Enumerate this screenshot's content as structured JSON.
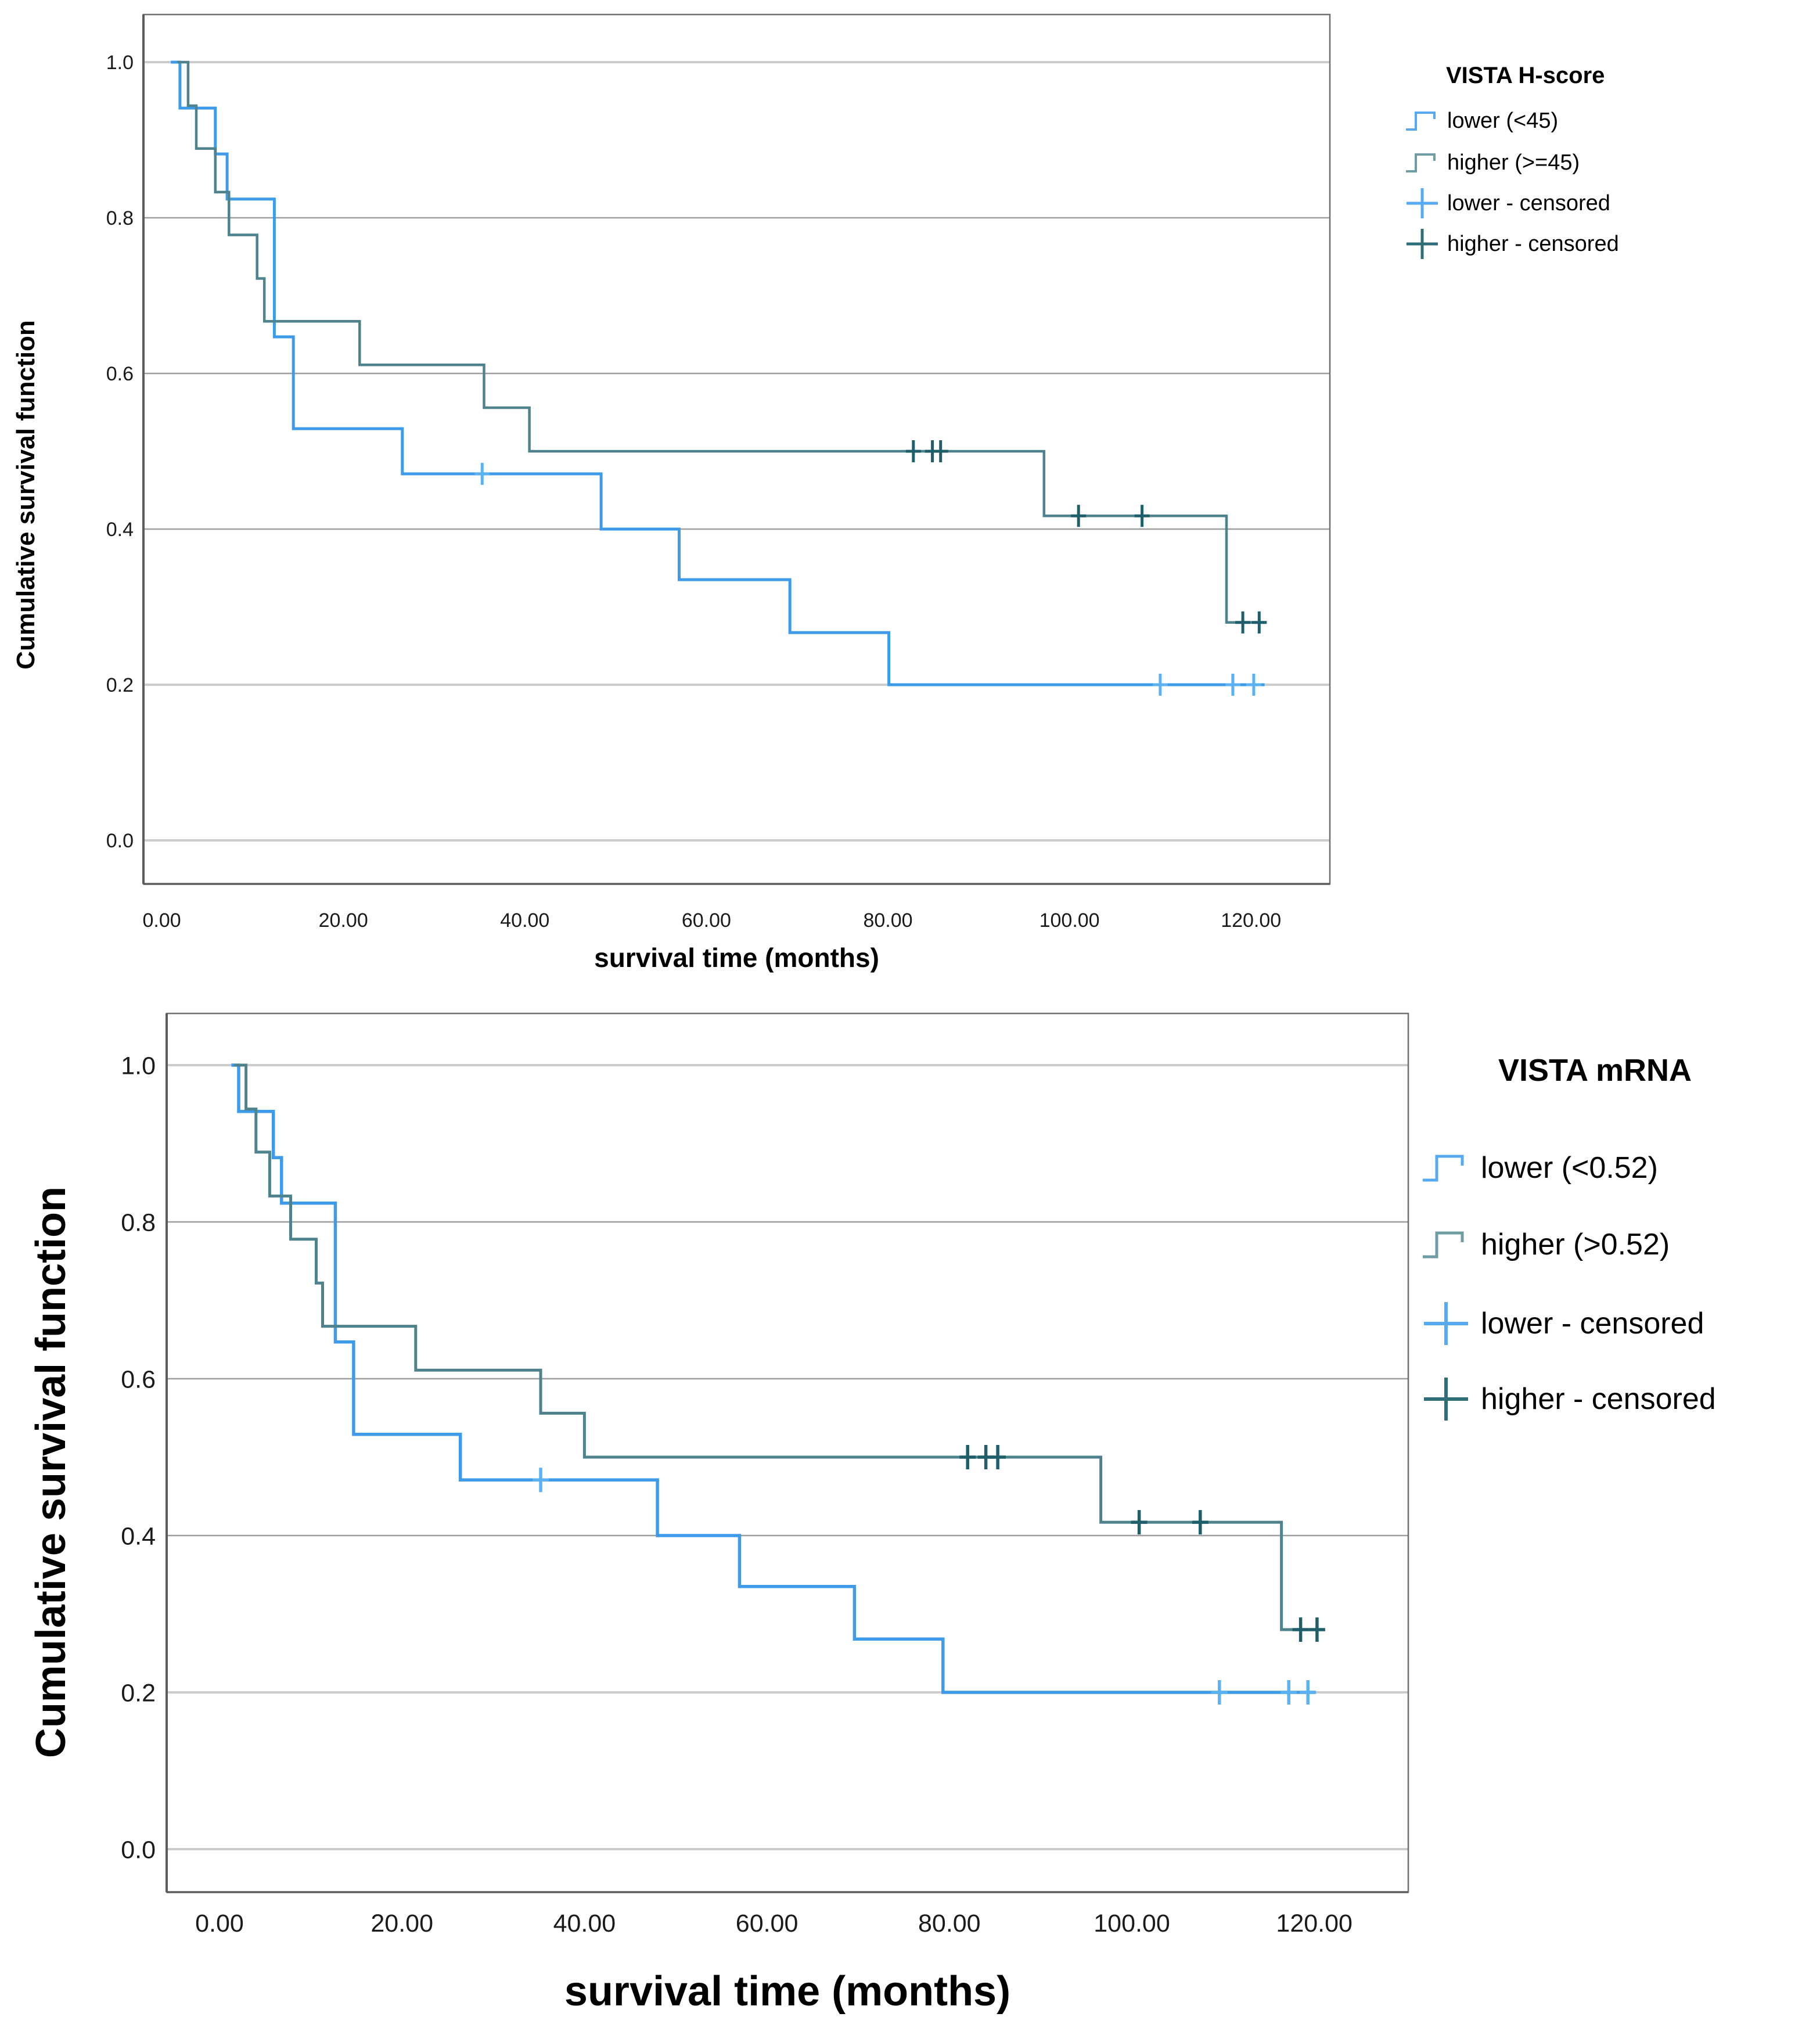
{
  "figure": {
    "background": "#ffffff",
    "frame_color": "#707070",
    "gridline_color_light": "#cccccc",
    "gridline_color_dark": "#9e9e9e"
  },
  "chart_data": [
    {
      "type": "line",
      "km_style": "kaplan-meier-step",
      "panel": "top",
      "xlabel": "survival time (months)",
      "ylabel": "Cumulative survival function",
      "xlim": [
        -8,
        132
      ],
      "ylim": [
        -0.07,
        1.1
      ],
      "grid": "horizontal-only",
      "legend_position": "right-top",
      "xticks": [
        {
          "v": 0,
          "label": "0.00"
        },
        {
          "v": 20,
          "label": "20.00"
        },
        {
          "v": 40,
          "label": "40.00"
        },
        {
          "v": 60,
          "label": "60.00"
        },
        {
          "v": 80,
          "label": "80.00"
        },
        {
          "v": 100,
          "label": "100.00"
        },
        {
          "v": 120,
          "label": "120.00"
        }
      ],
      "yticks": [
        {
          "v": 1.0,
          "label": "1.0"
        },
        {
          "v": 0.8,
          "label": "0.8"
        },
        {
          "v": 0.6,
          "label": "0.6"
        },
        {
          "v": 0.4,
          "label": "0.4"
        },
        {
          "v": 0.2,
          "label": "0.2"
        },
        {
          "v": 0.0,
          "label": "0.0"
        }
      ],
      "legend": {
        "title": "VISTA H-score",
        "items": [
          {
            "label": "lower (<45)",
            "kind": "step",
            "color": "#58aaf0"
          },
          {
            "label": "higher (>=45)",
            "kind": "step",
            "color": "#6f9ba2"
          },
          {
            "label": "lower - censored",
            "kind": "plus",
            "color": "#58aaf0"
          },
          {
            "label": "higher - censored",
            "kind": "plus",
            "color": "#2f6e79"
          }
        ]
      },
      "series": [
        {
          "key": "lower",
          "name": "lower (<45)",
          "color": "#3d9be9",
          "censor_color": "#5bb2f3",
          "start": 1.0,
          "end": 121.5,
          "steps": [
            [
              2.0,
              0.941
            ],
            [
              5.9,
              0.882
            ],
            [
              7.2,
              0.824
            ],
            [
              12.4,
              0.647
            ],
            [
              14.5,
              0.529
            ],
            [
              26.5,
              0.471
            ],
            [
              48.4,
              0.4
            ],
            [
              57.0,
              0.335
            ],
            [
              69.2,
              0.267
            ],
            [
              80.1,
              0.2
            ]
          ],
          "censored": [
            [
              35.3,
              0.471
            ],
            [
              110.0,
              0.2
            ],
            [
              118.0,
              0.2
            ],
            [
              120.3,
              0.2
            ]
          ]
        },
        {
          "key": "higher",
          "name": "higher (>=45)",
          "color": "#4e838d",
          "censor_color": "#1f5f6b",
          "start": 1.7,
          "end": 121.5,
          "steps": [
            [
              2.9,
              0.944
            ],
            [
              3.8,
              0.889
            ],
            [
              5.9,
              0.833
            ],
            [
              7.4,
              0.778
            ],
            [
              10.5,
              0.722
            ],
            [
              11.3,
              0.667
            ],
            [
              21.8,
              0.611
            ],
            [
              35.5,
              0.556
            ],
            [
              40.5,
              0.5
            ],
            [
              97.2,
              0.417
            ],
            [
              117.3,
              0.28
            ]
          ],
          "censored": [
            [
              82.8,
              0.5
            ],
            [
              84.9,
              0.5
            ],
            [
              85.8,
              0.5
            ],
            [
              101.0,
              0.417
            ],
            [
              108.0,
              0.417
            ],
            [
              119.1,
              0.28
            ],
            [
              120.9,
              0.28
            ]
          ]
        }
      ]
    },
    {
      "type": "line",
      "km_style": "kaplan-meier-step",
      "panel": "bottom",
      "xlabel": "survival time (months)",
      "ylabel": "Cumulative survival function",
      "xlim": [
        -8,
        132
      ],
      "ylim": [
        -0.07,
        1.1
      ],
      "grid": "horizontal-only",
      "legend_position": "right-top",
      "xticks": [
        {
          "v": 0,
          "label": "0.00"
        },
        {
          "v": 20,
          "label": "20.00"
        },
        {
          "v": 40,
          "label": "40.00"
        },
        {
          "v": 60,
          "label": "60.00"
        },
        {
          "v": 80,
          "label": "80.00"
        },
        {
          "v": 100,
          "label": "100.00"
        },
        {
          "v": 120,
          "label": "120.00"
        }
      ],
      "yticks": [
        {
          "v": 1.0,
          "label": "1.0"
        },
        {
          "v": 0.8,
          "label": "0.8"
        },
        {
          "v": 0.6,
          "label": "0.6"
        },
        {
          "v": 0.4,
          "label": "0.4"
        },
        {
          "v": 0.2,
          "label": "0.2"
        },
        {
          "v": 0.0,
          "label": "0.0"
        }
      ],
      "legend": {
        "title": "VISTA mRNA",
        "items": [
          {
            "label": "lower (<0.52)",
            "kind": "step",
            "color": "#58aaf0"
          },
          {
            "label": "higher (>0.52)",
            "kind": "step",
            "color": "#6f9ba2"
          },
          {
            "label": "lower - censored",
            "kind": "plus",
            "color": "#58aaf0"
          },
          {
            "label": "higher - censored",
            "kind": "plus",
            "color": "#2f6e79"
          }
        ]
      },
      "series": [
        {
          "key": "lower",
          "name": "lower (<0.52)",
          "color": "#3d9be9",
          "censor_color": "#5bb2f3",
          "start": 1.3,
          "end": 120.1,
          "steps": [
            [
              2.1,
              0.941
            ],
            [
              5.9,
              0.882
            ],
            [
              6.8,
              0.824
            ],
            [
              12.7,
              0.647
            ],
            [
              14.7,
              0.529
            ],
            [
              26.4,
              0.471
            ],
            [
              48.0,
              0.4
            ],
            [
              57.0,
              0.335
            ],
            [
              69.6,
              0.268
            ],
            [
              79.3,
              0.2
            ]
          ],
          "censored": [
            [
              35.2,
              0.471
            ],
            [
              109.6,
              0.2
            ],
            [
              117.2,
              0.2
            ],
            [
              119.3,
              0.2
            ]
          ]
        },
        {
          "key": "higher",
          "name": "higher (>0.52)",
          "color": "#4e838d",
          "censor_color": "#1f5f6b",
          "start": 1.6,
          "end": 121.0,
          "steps": [
            [
              2.9,
              0.944
            ],
            [
              4.0,
              0.889
            ],
            [
              5.5,
              0.833
            ],
            [
              7.8,
              0.778
            ],
            [
              10.6,
              0.722
            ],
            [
              11.3,
              0.667
            ],
            [
              21.5,
              0.611
            ],
            [
              35.2,
              0.556
            ],
            [
              40.0,
              0.5
            ],
            [
              96.6,
              0.417
            ],
            [
              116.4,
              0.28
            ]
          ],
          "censored": [
            [
              82.0,
              0.5
            ],
            [
              84.0,
              0.5
            ],
            [
              85.3,
              0.5
            ],
            [
              100.8,
              0.417
            ],
            [
              107.5,
              0.417
            ],
            [
              118.5,
              0.28
            ],
            [
              120.3,
              0.28
            ]
          ]
        }
      ]
    }
  ]
}
